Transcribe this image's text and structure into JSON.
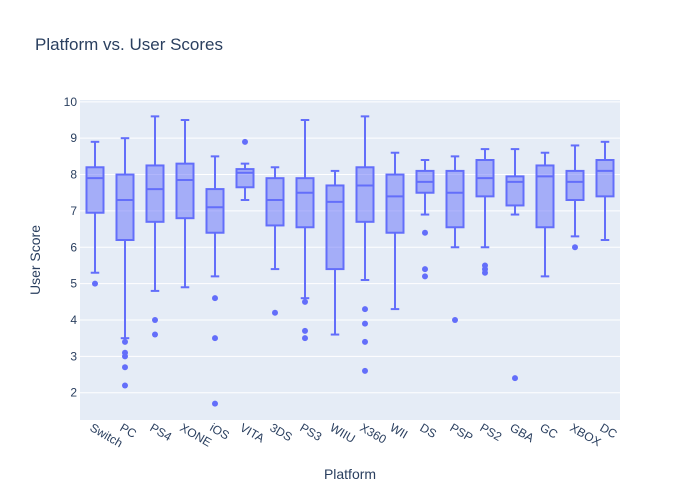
{
  "chart_data": {
    "type": "box",
    "title": "Platform vs. User Scores",
    "xlabel": "Platform",
    "ylabel": "User Score",
    "ylim": [
      1.25,
      10.05
    ],
    "yticks": [
      2,
      3,
      4,
      5,
      6,
      7,
      8,
      9,
      10
    ],
    "grid": true,
    "legend": "none",
    "categories": [
      "Switch",
      "PC",
      "PS4",
      "XONE",
      "iOS",
      "VITA",
      "3DS",
      "PS3",
      "WIIU",
      "X360",
      "WII",
      "DS",
      "PSP",
      "PS2",
      "GBA",
      "GC",
      "XBOX",
      "DC"
    ],
    "boxes": [
      {
        "min": 5.3,
        "q1": 6.95,
        "median": 7.9,
        "q3": 8.2,
        "max": 8.9,
        "outliers": [
          5.0
        ]
      },
      {
        "min": 3.5,
        "q1": 6.2,
        "median": 7.3,
        "q3": 8.0,
        "max": 9.0,
        "outliers": [
          3.4,
          3.1,
          3.0,
          2.7,
          2.2
        ]
      },
      {
        "min": 4.8,
        "q1": 6.7,
        "median": 7.6,
        "q3": 8.25,
        "max": 9.6,
        "outliers": [
          4.0,
          3.6
        ]
      },
      {
        "min": 4.9,
        "q1": 6.8,
        "median": 7.85,
        "q3": 8.3,
        "max": 9.5,
        "outliers": []
      },
      {
        "min": 5.2,
        "q1": 6.4,
        "median": 7.1,
        "q3": 7.6,
        "max": 8.5,
        "outliers": [
          4.6,
          3.5,
          1.7
        ]
      },
      {
        "min": 7.3,
        "q1": 7.65,
        "median": 8.05,
        "q3": 8.15,
        "max": 8.3,
        "outliers": [
          8.9
        ]
      },
      {
        "min": 5.4,
        "q1": 6.6,
        "median": 7.3,
        "q3": 7.9,
        "max": 8.2,
        "outliers": [
          4.2
        ]
      },
      {
        "min": 4.6,
        "q1": 6.55,
        "median": 7.5,
        "q3": 7.9,
        "max": 9.5,
        "outliers": [
          4.5,
          3.7,
          3.5
        ]
      },
      {
        "min": 3.6,
        "q1": 5.4,
        "median": 7.25,
        "q3": 7.7,
        "max": 8.1,
        "outliers": []
      },
      {
        "min": 5.1,
        "q1": 6.7,
        "median": 7.7,
        "q3": 8.2,
        "max": 9.6,
        "outliers": [
          4.3,
          3.9,
          3.4,
          2.6
        ]
      },
      {
        "min": 4.3,
        "q1": 6.4,
        "median": 7.4,
        "q3": 8.0,
        "max": 8.6,
        "outliers": []
      },
      {
        "min": 6.9,
        "q1": 7.5,
        "median": 7.8,
        "q3": 8.1,
        "max": 8.4,
        "outliers": [
          6.4,
          5.4,
          5.2
        ]
      },
      {
        "min": 6.0,
        "q1": 6.55,
        "median": 7.5,
        "q3": 8.1,
        "max": 8.5,
        "outliers": [
          4.0
        ]
      },
      {
        "min": 6.0,
        "q1": 7.4,
        "median": 7.9,
        "q3": 8.4,
        "max": 8.7,
        "outliers": [
          5.5,
          5.4,
          5.3
        ]
      },
      {
        "min": 6.9,
        "q1": 7.15,
        "median": 7.8,
        "q3": 7.95,
        "max": 8.7,
        "outliers": [
          2.4
        ]
      },
      {
        "min": 5.2,
        "q1": 6.55,
        "median": 7.95,
        "q3": 8.25,
        "max": 8.6,
        "outliers": []
      },
      {
        "min": 6.3,
        "q1": 7.3,
        "median": 7.8,
        "q3": 8.1,
        "max": 8.8,
        "outliers": [
          6.0
        ]
      },
      {
        "min": 6.2,
        "q1": 7.4,
        "median": 8.1,
        "q3": 8.4,
        "max": 8.9,
        "outliers": []
      }
    ],
    "colors": {
      "box_line": "#636efa",
      "box_fill": "rgba(99,110,250,0.5)",
      "plot_bg": "#e5ecf6",
      "grid": "#ffffff",
      "text": "#2a3f5f"
    }
  }
}
